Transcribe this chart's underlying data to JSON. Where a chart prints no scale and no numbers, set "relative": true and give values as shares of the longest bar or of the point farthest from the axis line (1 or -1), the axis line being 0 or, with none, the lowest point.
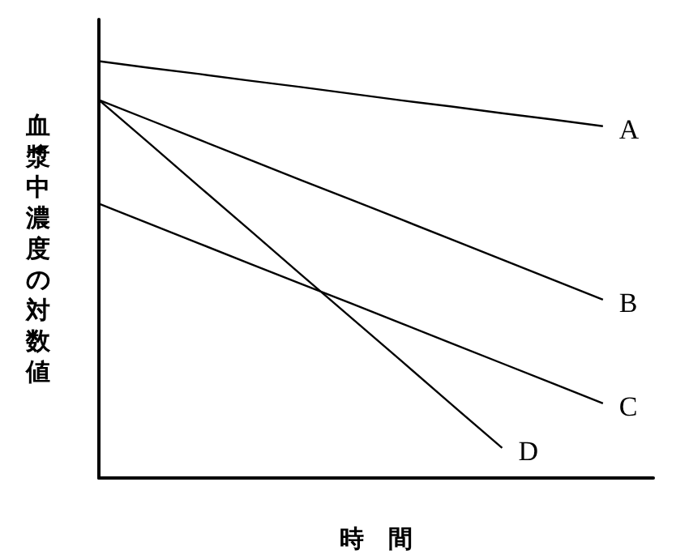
{
  "chart_data": {
    "type": "line",
    "relative": true,
    "xlabel": "時　間",
    "ylabel": "血漿中濃度の対数値",
    "categories": [
      null,
      null,
      null,
      null,
      null,
      null,
      null,
      null,
      null,
      null,
      null,
      null
    ],
    "grid": false,
    "legend": false,
    "marker": "none",
    "line_style": "solid",
    "series": [
      {
        "name": "A",
        "color": "#000000",
        "values": [
          1,
          0.984,
          0.969,
          0.953,
          0.938,
          0.922,
          0.906,
          0.891,
          0.875,
          0.86,
          0.844,
          null
        ]
      },
      {
        "name": "B",
        "color": "#000000",
        "values": [
          0.907,
          0.859,
          0.811,
          0.763,
          0.715,
          0.668,
          0.62,
          0.572,
          0.524,
          0.476,
          0.428,
          null
        ]
      },
      {
        "name": "C",
        "color": "#000000",
        "values": [
          0.658,
          0.61,
          0.562,
          0.514,
          0.466,
          0.419,
          0.371,
          0.323,
          0.275,
          0.227,
          0.179,
          null
        ]
      },
      {
        "name": "D",
        "color": "#000000",
        "values": [
          0.907,
          0.803,
          0.698,
          0.594,
          0.489,
          0.385,
          0.281,
          0.176,
          0.072,
          null,
          null,
          null
        ]
      }
    ]
  }
}
